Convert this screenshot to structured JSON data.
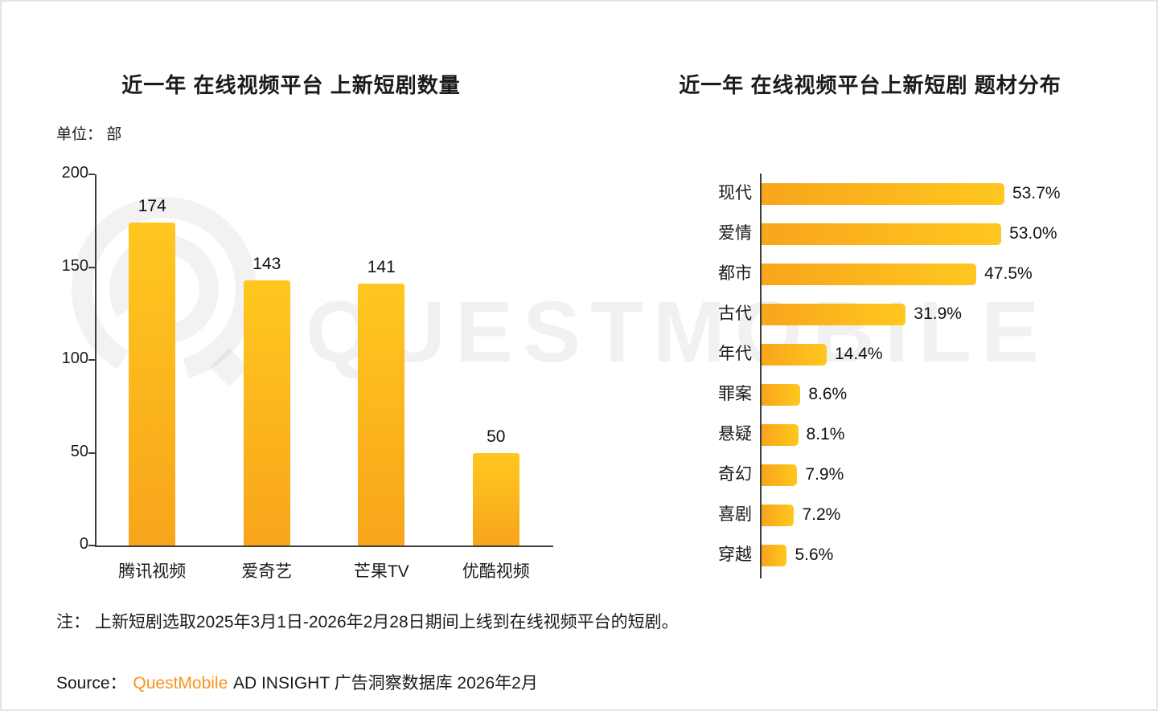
{
  "page": {
    "watermark": "QUESTMOBILE",
    "note": "注： 上新短剧选取2025年3月1日-2026年2月28日期间上线到在线视频平台的短剧。",
    "source_prefix": "Source：",
    "source_brand": "QuestMobile",
    "source_suffix": " AD INSIGHT 广告洞察数据库 2026年2月"
  },
  "colors": {
    "bar_gradient_start": "#f8a51b",
    "bar_gradient_end": "#ffc71f",
    "brand_orange": "#f7941e",
    "axis": "#3d3d3d"
  },
  "chart_data": [
    {
      "type": "bar",
      "orientation": "vertical",
      "title": "近一年 在线视频平台 上新短剧数量",
      "unit_label": "单位： 部",
      "categories": [
        "腾讯视频",
        "爱奇艺",
        "芒果TV",
        "优酷视频"
      ],
      "values": [
        174,
        143,
        141,
        50
      ],
      "ylabel": "部",
      "ylim": [
        0,
        200
      ],
      "yticks": [
        0,
        50,
        100,
        150,
        200
      ],
      "grid": false,
      "legend": false,
      "data_labels": true
    },
    {
      "type": "bar",
      "orientation": "horizontal",
      "title": "近一年 在线视频平台上新短剧 题材分布",
      "categories": [
        "现代",
        "爱情",
        "都市",
        "古代",
        "年代",
        "罪案",
        "悬疑",
        "奇幻",
        "喜剧",
        "穿越"
      ],
      "values": [
        53.7,
        53.0,
        47.5,
        31.9,
        14.4,
        8.6,
        8.1,
        7.9,
        7.2,
        5.6
      ],
      "value_format": "percent",
      "xlim": [
        0,
        60
      ],
      "grid": false,
      "legend": false,
      "data_labels": true
    }
  ]
}
